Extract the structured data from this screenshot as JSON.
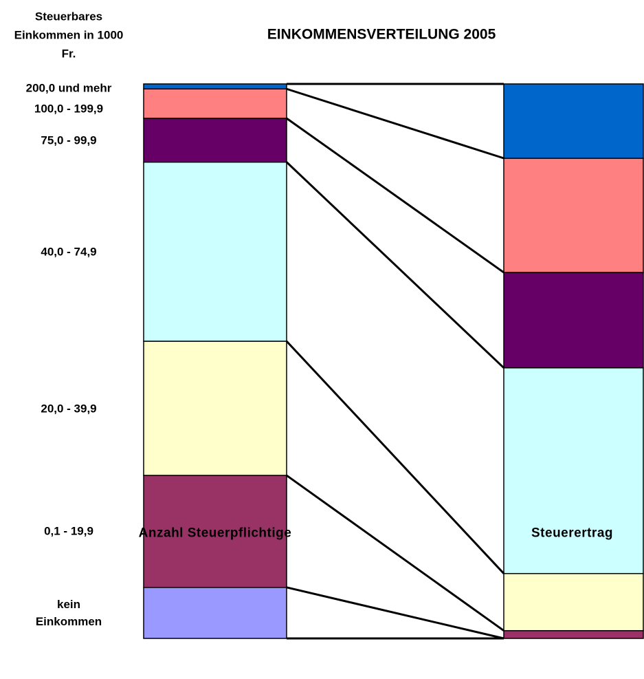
{
  "chart_data": {
    "type": "bar",
    "stacked": true,
    "title": "EINKOMMENSVERTEILUNG 2005",
    "legend_title": "Steuerbares Einkommen in 1000 Fr.",
    "categories": [
      "Anzahl Steuerpflichtige",
      "Steuerertrag"
    ],
    "ylim": [
      0,
      100
    ],
    "series": [
      {
        "name": "kein Einkommen",
        "color": "#9999ff",
        "values": [
          9.2,
          0
        ]
      },
      {
        "name": "0,1 - 19,9",
        "color": "#993366",
        "values": [
          20.2,
          1.4
        ]
      },
      {
        "name": "20,0 - 39,9",
        "color": "#ffffcc",
        "values": [
          24.2,
          10.3
        ]
      },
      {
        "name": "40,0 - 74,9",
        "color": "#ccffff",
        "values": [
          32.3,
          37.1
        ]
      },
      {
        "name": "75,0 - 99,9",
        "color": "#660066",
        "values": [
          7.9,
          17.2
        ]
      },
      {
        "name": "100,0 - 199,9",
        "color": "#ff8080",
        "values": [
          5.3,
          20.6
        ]
      },
      {
        "name": "200,0 und mehr",
        "color": "#0066cc",
        "values": [
          0.9,
          13.4
        ]
      }
    ]
  }
}
